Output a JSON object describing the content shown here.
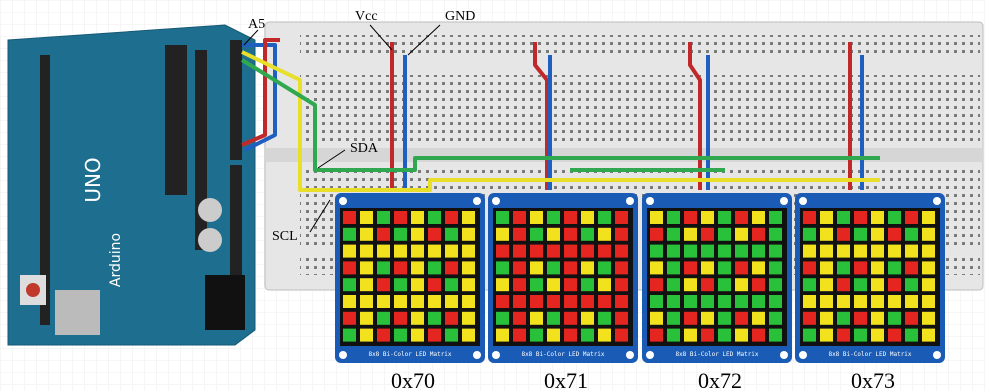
{
  "labels": {
    "a5": "A5",
    "vcc": "Vcc",
    "gnd": "GND",
    "sda": "SDA",
    "scl": "SCL"
  },
  "arduino": {
    "model": "UNO",
    "brand": "Arduino"
  },
  "matrices": [
    {
      "address": "0x70",
      "caption": "8x8 Bi-Color LED Matrix"
    },
    {
      "address": "0x71",
      "caption": "8x8 Bi-Color LED Matrix"
    },
    {
      "address": "0x72",
      "caption": "8x8 Bi-Color LED Matrix"
    },
    {
      "address": "0x73",
      "caption": "8x8 Bi-Color LED Matrix"
    }
  ]
}
